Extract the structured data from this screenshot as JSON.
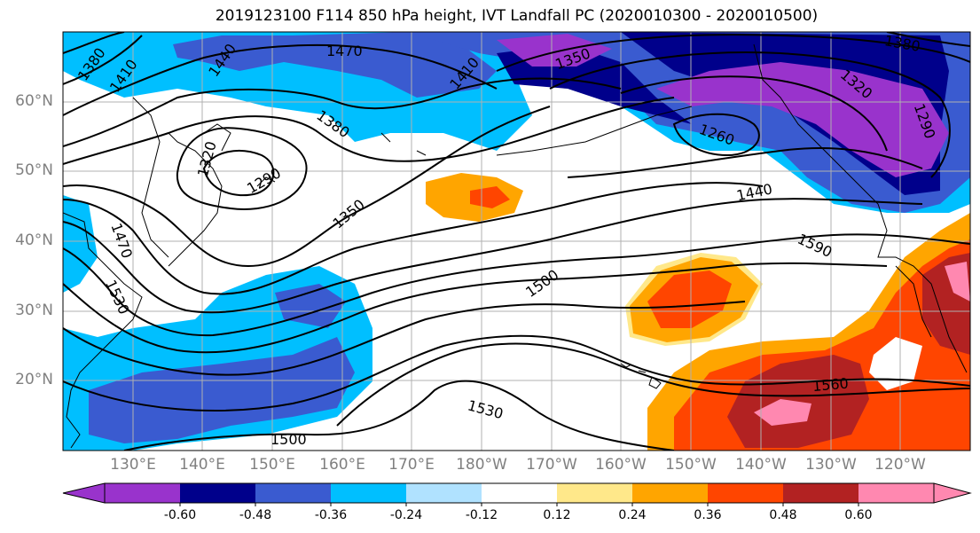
{
  "title": "2019123100 F114 850 hPa height, IVT Landfall PC (2020010300 - 2020010500)",
  "lat_labels": [
    "60°N",
    "50°N",
    "40°N",
    "30°N",
    "20°N"
  ],
  "lon_labels": [
    "130°E",
    "140°E",
    "150°E",
    "160°E",
    "170°E",
    "180°W",
    "170°W",
    "160°W",
    "150°W",
    "140°W",
    "130°W",
    "120°W"
  ],
  "contour_labels": [
    "1380",
    "1410",
    "1440",
    "1470",
    "1350",
    "1320",
    "1380",
    "1410",
    "1290",
    "1320",
    "1350",
    "1380",
    "1260",
    "1440",
    "1290",
    "1470",
    "1530",
    "1500",
    "1590",
    "1560",
    "1530",
    "1500"
  ],
  "colorbar": {
    "colors": [
      "#9933cc",
      "#00008b",
      "#3a5bd0",
      "#00bfff",
      "#b0e2ff",
      "#ffffff",
      "#ffe88a",
      "#ffa500",
      "#ff4500",
      "#b22222",
      "#ff88b0"
    ],
    "tick_labels": [
      "-0.60",
      "-0.48",
      "-0.36",
      "-0.24",
      "-0.12",
      "0.12",
      "0.24",
      "0.36",
      "0.48",
      "0.60"
    ]
  }
}
